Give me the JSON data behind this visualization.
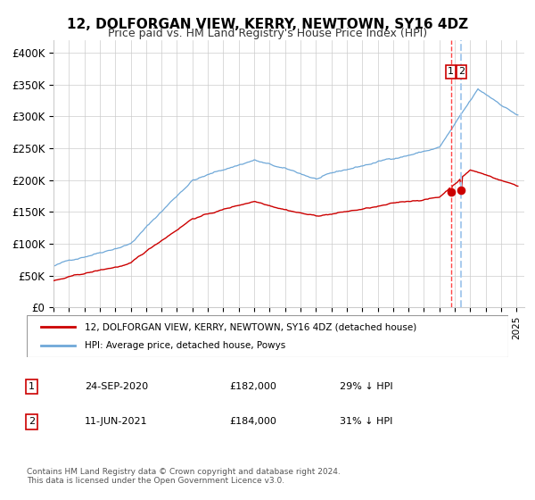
{
  "title": "12, DOLFORGAN VIEW, KERRY, NEWTOWN, SY16 4DZ",
  "subtitle": "Price paid vs. HM Land Registry's House Price Index (HPI)",
  "legend_line1": "12, DOLFORGAN VIEW, KERRY, NEWTOWN, SY16 4DZ (detached house)",
  "legend_line2": "HPI: Average price, detached house, Powys",
  "annotation1_label": "1",
  "annotation1_date": "24-SEP-2020",
  "annotation1_price": "£182,000",
  "annotation1_hpi": "29% ↓ HPI",
  "annotation2_label": "2",
  "annotation2_date": "11-JUN-2021",
  "annotation2_price": "£184,000",
  "annotation2_hpi": "31% ↓ HPI",
  "footer": "Contains HM Land Registry data © Crown copyright and database right 2024.\nThis data is licensed under the Open Government Licence v3.0.",
  "hpi_color": "#6fa8d8",
  "price_color": "#cc0000",
  "marker_color": "#cc0000",
  "vline1_color": "#ff4444",
  "vline2_color": "#aaccee",
  "annotation_box_color": "#cc0000",
  "ylim": [
    0,
    420000
  ],
  "yticks": [
    0,
    50000,
    100000,
    150000,
    200000,
    250000,
    300000,
    350000,
    400000
  ],
  "ytick_labels": [
    "£0",
    "£50K",
    "£100K",
    "£150K",
    "£200K",
    "£250K",
    "£300K",
    "£350K",
    "£400K"
  ],
  "sale1_year": 2020.73,
  "sale1_price": 182000,
  "sale2_year": 2021.44,
  "sale2_price": 184000,
  "background_color": "#ffffff",
  "grid_color": "#cccccc"
}
